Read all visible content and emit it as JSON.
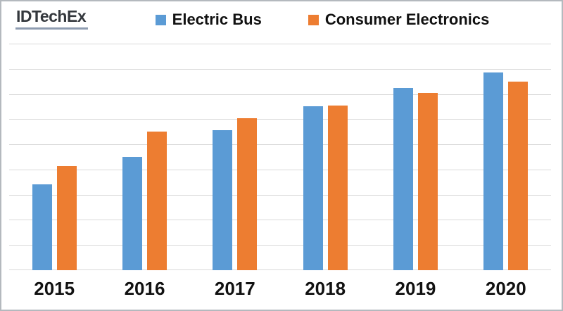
{
  "header": {
    "logo_text": "IDTechEx"
  },
  "chart_data": {
    "type": "bar",
    "title": "",
    "xlabel": "",
    "ylabel": "",
    "categories": [
      "2015",
      "2016",
      "2017",
      "2018",
      "2019",
      "2020"
    ],
    "series": [
      {
        "name": "Electric Bus",
        "color": "#5B9BD5",
        "values": [
          3.4,
          4.5,
          5.55,
          6.5,
          7.25,
          7.85
        ]
      },
      {
        "name": "Consumer Electronics",
        "color": "#ED7D31",
        "values": [
          4.15,
          5.5,
          6.05,
          6.55,
          7.05,
          7.5
        ]
      }
    ],
    "ylim": [
      0,
      9
    ],
    "gridline_intervals": 9,
    "grid": "horizontal",
    "y_tick_labels_visible": false,
    "legend_position": "top"
  },
  "colors": {
    "background": "#FFFFFF",
    "frame_border": "#B4B9BE",
    "gridline": "#D9D9D9",
    "label_text": "#111111",
    "logo_text": "#34383D",
    "logo_underline": "#8E9CB0"
  }
}
